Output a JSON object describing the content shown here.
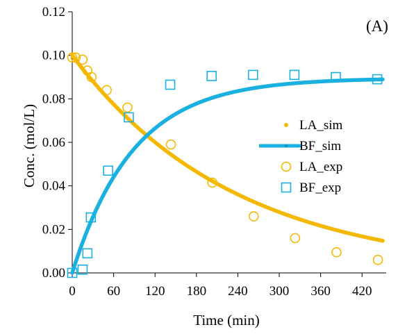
{
  "chart_data": {
    "type": "scatter",
    "title": "",
    "panel_label": "(A)",
    "xlabel": "Time (min)",
    "ylabel": "Conc. (mol/L)",
    "xlim": [
      0,
      455
    ],
    "ylim": [
      0,
      0.12
    ],
    "x_ticks": [
      0,
      60,
      120,
      180,
      240,
      300,
      360,
      420
    ],
    "x_tick_labels": [
      "0",
      "60",
      "120",
      "180",
      "240",
      "300",
      "360",
      "420"
    ],
    "y_ticks": [
      0,
      0.02,
      0.04,
      0.06,
      0.08,
      0.1,
      0.12
    ],
    "y_tick_labels": [
      "0.00",
      "0.02",
      "0.04",
      "0.06",
      "0.08",
      "0.10",
      "0.12"
    ],
    "grid": false,
    "legend_position": "right-middle",
    "colors": {
      "la": "#f5b800",
      "bf": "#1ab0e0"
    },
    "series": [
      {
        "name": "LA_sim",
        "kind": "line",
        "marker": "dot",
        "color": "#f5b800",
        "model": {
          "type": "exp_decay",
          "c0": 0.1,
          "k": 0.00425,
          "x_start": 0,
          "x_end": 450
        }
      },
      {
        "name": "BF_sim",
        "kind": "line",
        "marker": "dot",
        "color": "#1ab0e0",
        "model": {
          "type": "exp_rise",
          "cmax": 0.0895,
          "k": 0.0113,
          "x_start": 0,
          "x_end": 450
        }
      },
      {
        "name": "LA_exp",
        "kind": "scatter",
        "marker": "circle",
        "color": "#f5b800",
        "x": [
          0,
          5,
          15,
          22,
          28,
          50,
          80,
          143,
          203,
          263,
          323,
          383,
          443
        ],
        "y": [
          0.099,
          0.099,
          0.098,
          0.093,
          0.09,
          0.084,
          0.076,
          0.059,
          0.0415,
          0.026,
          0.016,
          0.0095,
          0.006
        ]
      },
      {
        "name": "BF_exp",
        "kind": "scatter",
        "marker": "square",
        "color": "#1ab0e0",
        "x": [
          0,
          15,
          22,
          27,
          52,
          82,
          142,
          202,
          262,
          322,
          382,
          442
        ],
        "y": [
          0.0,
          0.0015,
          0.009,
          0.0255,
          0.047,
          0.0715,
          0.0865,
          0.0905,
          0.091,
          0.091,
          0.09,
          0.089
        ]
      }
    ]
  }
}
